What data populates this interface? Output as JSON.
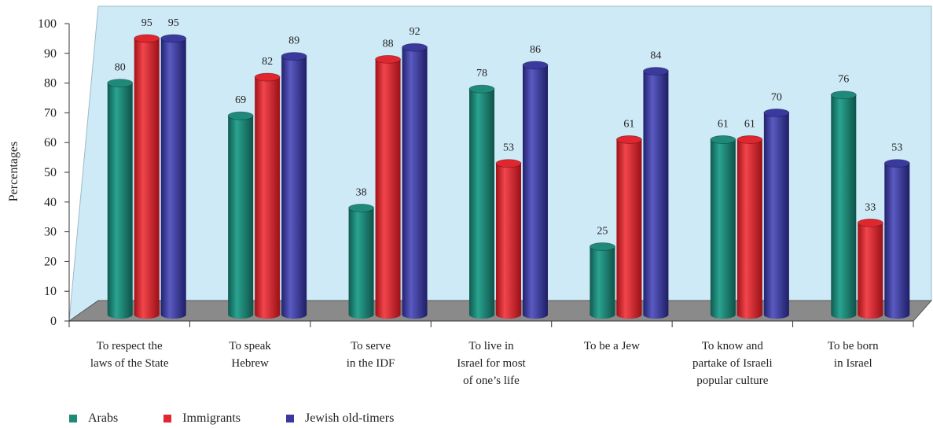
{
  "chart_data": {
    "type": "bar",
    "ylabel": "Percentages",
    "ylim": [
      0,
      100
    ],
    "yticks": [
      0,
      10,
      20,
      30,
      40,
      50,
      60,
      70,
      80,
      90,
      100
    ],
    "grid": false,
    "legend_position": "bottom-left",
    "categories": [
      [
        "To respect the",
        "laws of the State"
      ],
      [
        "To speak",
        "Hebrew"
      ],
      [
        "To serve",
        "in the IDF"
      ],
      [
        "To live in",
        "Israel for most",
        "of one’s life"
      ],
      [
        "To be a Jew"
      ],
      [
        "To know and",
        "partake of Israeli",
        "popular culture"
      ],
      [
        "To be born",
        "in Israel"
      ]
    ],
    "series": [
      {
        "name": "Arabs",
        "color": "#1f8a7a",
        "values": [
          80,
          69,
          38,
          78,
          25,
          61,
          76
        ]
      },
      {
        "name": "Immigrants",
        "color": "#e0262e",
        "values": [
          95,
          82,
          88,
          53,
          61,
          61,
          33
        ]
      },
      {
        "name": "Jewish old-timers",
        "color": "#3a3a9e",
        "values": [
          95,
          89,
          92,
          86,
          84,
          70,
          53
        ]
      }
    ]
  }
}
